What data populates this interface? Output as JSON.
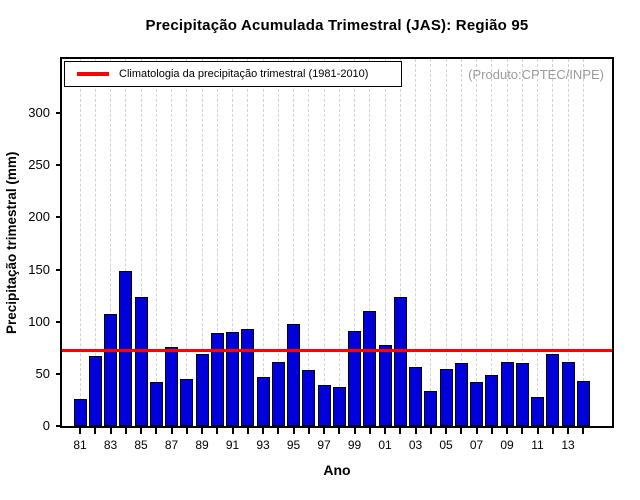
{
  "chart_data": {
    "type": "bar",
    "title": "Precipitação Acumulada Trimestral (JAS): Região 95",
    "xlabel": "Ano",
    "ylabel": "Precipitação trimestral (mm)",
    "annotation": "(Produto:CPTEC/INPE)",
    "legend": [
      "Climatologia da precipitação trimestral (1981-2010)"
    ],
    "legend_position": "top-left",
    "grid": "vertical-dashed",
    "ylim": [
      0,
      352
    ],
    "yticks": [
      0,
      50,
      100,
      150,
      200,
      250,
      300
    ],
    "categories": [
      "1981",
      "1982",
      "1983",
      "1984",
      "1985",
      "1986",
      "1987",
      "1988",
      "1989",
      "1990",
      "1991",
      "1992",
      "1993",
      "1994",
      "1995",
      "1996",
      "1997",
      "1998",
      "1999",
      "2000",
      "2001",
      "2002",
      "2003",
      "2004",
      "2005",
      "2006",
      "2007",
      "2008",
      "2009",
      "2010",
      "2011",
      "2012",
      "2013",
      "2014"
    ],
    "values": [
      26,
      67,
      107,
      149,
      124,
      42,
      76,
      45,
      69,
      89,
      90,
      93,
      47,
      61,
      98,
      54,
      39,
      37,
      91,
      110,
      78,
      124,
      57,
      34,
      55,
      60,
      42,
      49,
      61,
      60,
      28,
      69,
      61,
      43
    ],
    "x_tick_labels": [
      "81",
      "83",
      "85",
      "87",
      "89",
      "91",
      "93",
      "95",
      "97",
      "99",
      "01",
      "03",
      "05",
      "07",
      "09",
      "11",
      "13"
    ],
    "climatology_value": 72,
    "colors": {
      "bar_fill": "#0000db",
      "bar_border": "#000000",
      "climatology_line": "#ff0000",
      "gridline": "#d2d2d2",
      "annotation_text": "#9b9b9b"
    }
  }
}
